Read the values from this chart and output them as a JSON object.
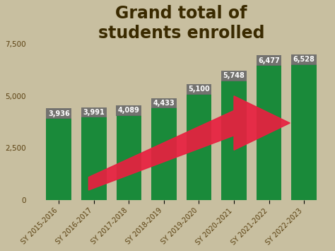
{
  "title": "Grand total of\nstudents enrolled",
  "categories": [
    "SY 2015-2016",
    "SY 2016-2017",
    "SY 2017-2018",
    "SY 2018-2019",
    "SY 2019-2020",
    "SY 2020-2021",
    "SY 2021-2022",
    "SY 2022-2023"
  ],
  "values": [
    3936,
    3991,
    4089,
    4433,
    5100,
    5748,
    6477,
    6528
  ],
  "bar_color": "#1a8a3a",
  "label_bg_color": "#6a6a6a",
  "label_text_color": "#ffffff",
  "title_color": "#3a2a00",
  "background_color": "#c8bfa0",
  "arrow_color": "#e82040",
  "tick_color": "#5a4010",
  "ylim": [
    0,
    7500
  ],
  "yticks": [
    0,
    2500,
    5000,
    7500
  ],
  "title_fontsize": 17,
  "tick_fontsize": 7.5,
  "xtick_fontsize": 7
}
